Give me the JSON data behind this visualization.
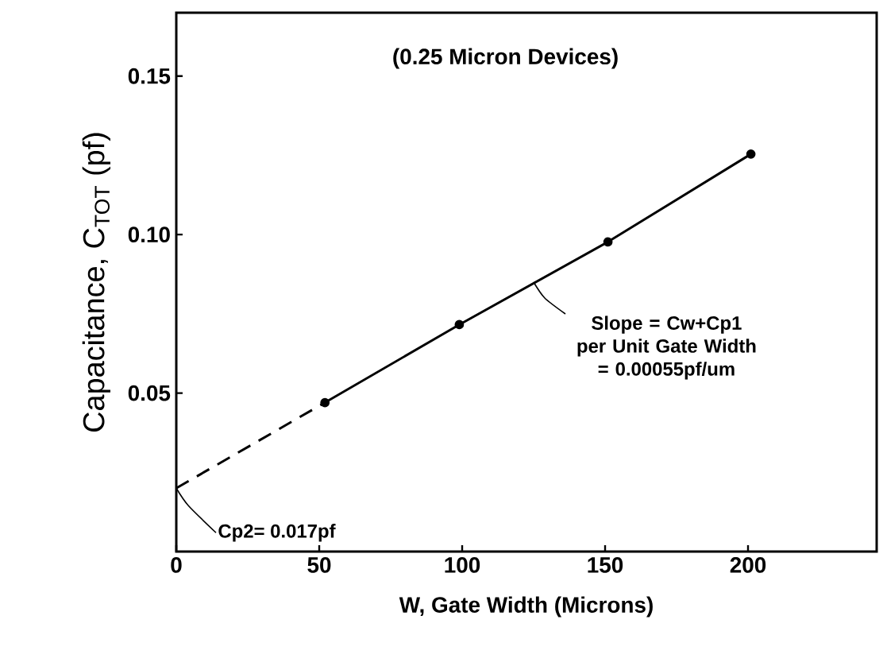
{
  "chart_data": {
    "type": "line",
    "title": "(0.25 Micron Devices)",
    "xlabel": "W, Gate Width (Microns)",
    "ylabel": "Capacitance, C$_{TOT}$ (pf)",
    "xlim": [
      0,
      245
    ],
    "ylim": [
      0,
      0.17
    ],
    "xticks": [
      0,
      50,
      100,
      150,
      200
    ],
    "yticks": [
      0.05,
      {
        "value": 0.1,
        "label": "0.10"
      },
      0.15
    ],
    "series": [
      {
        "color": "#000000",
        "marker": "circle",
        "line_style": "solid",
        "x": [
          52,
          99,
          151,
          201
        ],
        "values": [
          0.047,
          0.0716,
          0.0977,
          0.1254
        ]
      },
      {
        "color": "#000000",
        "marker": "none",
        "line_style": "dashed",
        "x": [
          0,
          52
        ],
        "values": [
          0.02,
          0.047
        ]
      }
    ],
    "annotations": [
      {
        "text": "Slope = Cw+Cp1 per Unit Gate Width = 0.00055pf/um",
        "x": 125,
        "y": 0.085
      },
      {
        "text": "Cp2= 0.017pf",
        "x": 0,
        "y": 0.02
      }
    ]
  }
}
